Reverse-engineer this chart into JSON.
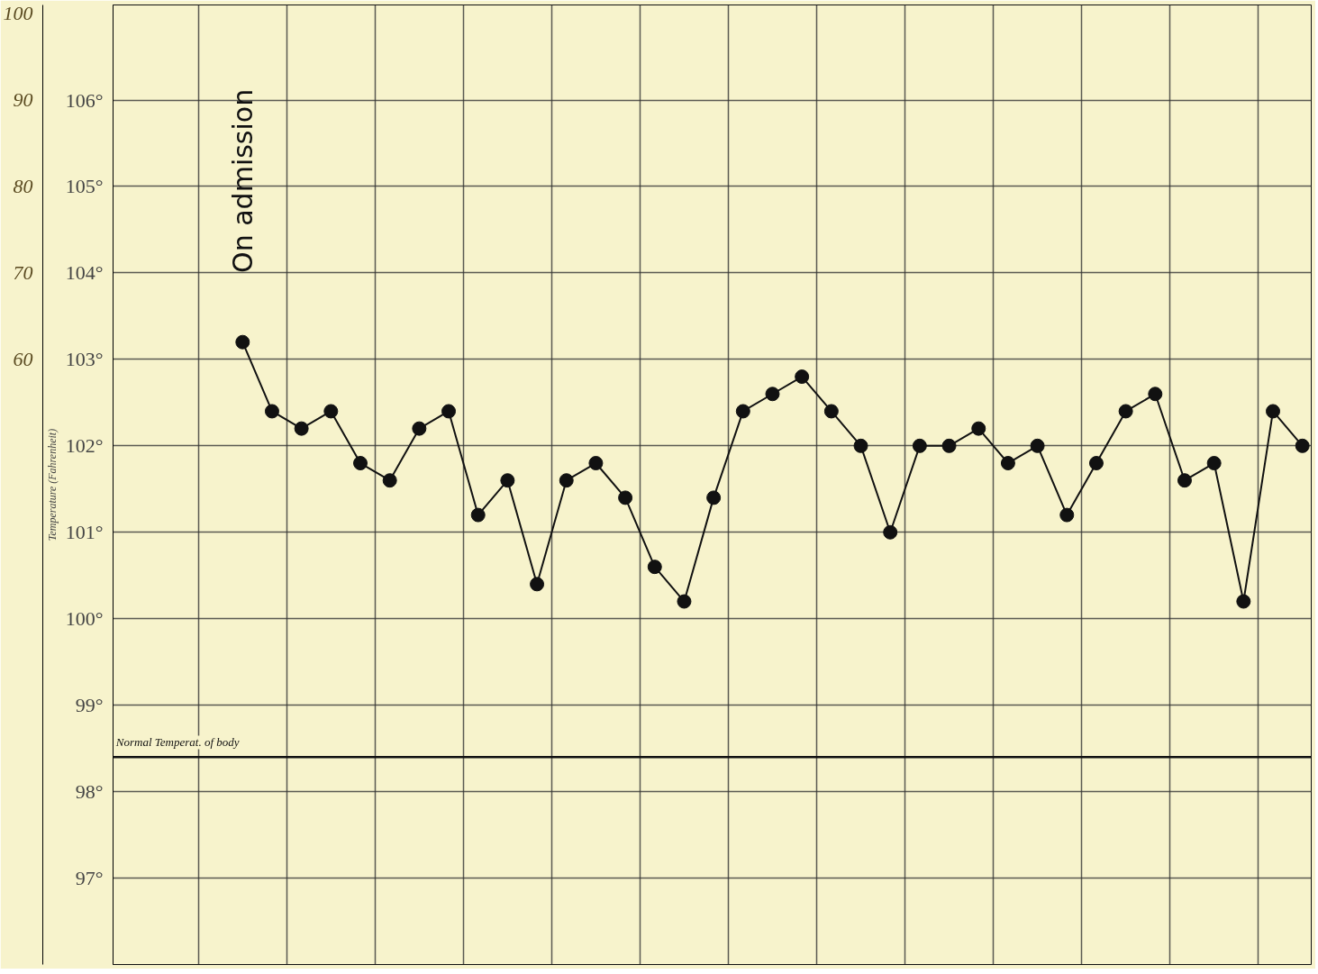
{
  "chart_data": {
    "type": "line",
    "ylabel": "Temperature (Fahrenheit)",
    "categories": [
      null,
      null,
      null,
      null,
      null,
      null,
      null,
      null,
      null,
      null,
      null,
      null,
      null,
      null,
      null,
      null,
      null,
      null,
      null,
      null,
      null,
      null,
      null,
      null,
      null,
      null,
      null,
      null,
      null,
      null,
      null,
      null,
      null,
      null,
      null,
      null,
      null
    ],
    "series": [
      {
        "color": "#111111",
        "values": [
          103.2,
          102.4,
          102.2,
          102.4,
          101.8,
          101.6,
          102.2,
          102.4,
          101.2,
          101.6,
          100.4,
          101.6,
          101.8,
          101.4,
          100.6,
          100.2,
          101.4,
          102.4,
          102.6,
          102.8,
          102.4,
          102.0,
          101.0,
          102.0,
          102.0,
          102.2,
          101.8,
          102.0,
          101.2,
          101.8,
          102.4,
          102.6,
          101.6,
          101.8,
          100.2,
          102.4,
          102.0
        ]
      }
    ],
    "ylim": [
      96,
      107.1
    ],
    "yticks": [
      {
        "value": 97,
        "label": "97°"
      },
      {
        "value": 98,
        "label": "98°"
      },
      {
        "value": 99,
        "label": "99°"
      },
      {
        "value": 100,
        "label": "100°"
      },
      {
        "value": 101,
        "label": "101°"
      },
      {
        "value": 102,
        "label": "102°"
      },
      {
        "value": 103,
        "label": "103°"
      },
      {
        "value": 104,
        "label": "104°"
      },
      {
        "value": 105,
        "label": "105°"
      },
      {
        "value": 106,
        "label": "106°"
      }
    ],
    "y2lim": [
      -10,
      101
    ],
    "y2ticks": [
      60,
      70,
      80,
      90,
      100
    ],
    "ref_lines": [
      {
        "axis": "y",
        "value": 98.4,
        "label": "Normal Temperat. of body",
        "color": "#111111"
      }
    ],
    "annotations": [
      "On admission"
    ],
    "grid": true,
    "marker": "circle",
    "line_style": "solid"
  }
}
